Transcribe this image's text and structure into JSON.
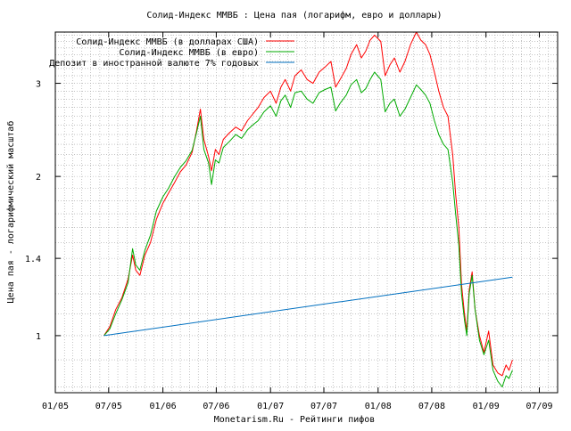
{
  "chart_data": {
    "type": "line",
    "title": "Солид-Индекс ММВБ : Цена пая (логарифм, евро и доллары)",
    "xlabel": "Monetarism.Ru - Рейтинги пифов",
    "ylabel": "Цена пая - логарифмический масштаб",
    "y_scale": "log",
    "ylim": [
      0.78,
      3.75
    ],
    "xlim": [
      "2005-01-01",
      "2009-09-01"
    ],
    "x_ticks": [
      {
        "date": "2005-01-01",
        "label": "01/05"
      },
      {
        "date": "2005-07-01",
        "label": "07/05"
      },
      {
        "date": "2006-01-01",
        "label": "01/06"
      },
      {
        "date": "2006-07-01",
        "label": "07/06"
      },
      {
        "date": "2007-01-01",
        "label": "01/07"
      },
      {
        "date": "2007-07-01",
        "label": "07/07"
      },
      {
        "date": "2008-01-01",
        "label": "01/08"
      },
      {
        "date": "2008-07-01",
        "label": "07/08"
      },
      {
        "date": "2009-01-01",
        "label": "01/09"
      },
      {
        "date": "2009-07-01",
        "label": "07/09"
      }
    ],
    "y_ticks": [
      {
        "value": 1,
        "label": "1"
      },
      {
        "value": 1.4,
        "label": "1.4"
      },
      {
        "value": 2,
        "label": "2"
      },
      {
        "value": 3,
        "label": "3"
      }
    ],
    "grid": true,
    "legend_position": "top-left",
    "series": [
      {
        "name": "Солид-Индекс ММВБ (в долларах США)",
        "color": "#ff0000",
        "points": [
          [
            "2005-06-15",
            1.0
          ],
          [
            "2005-07-05",
            1.04
          ],
          [
            "2005-07-25",
            1.12
          ],
          [
            "2005-08-15",
            1.18
          ],
          [
            "2005-09-05",
            1.28
          ],
          [
            "2005-09-20",
            1.42
          ],
          [
            "2005-10-01",
            1.33
          ],
          [
            "2005-10-15",
            1.3
          ],
          [
            "2005-11-01",
            1.42
          ],
          [
            "2005-11-20",
            1.5
          ],
          [
            "2005-12-10",
            1.66
          ],
          [
            "2006-01-01",
            1.78
          ],
          [
            "2006-01-20",
            1.86
          ],
          [
            "2006-02-10",
            1.95
          ],
          [
            "2006-03-01",
            2.04
          ],
          [
            "2006-03-20",
            2.1
          ],
          [
            "2006-04-10",
            2.22
          ],
          [
            "2006-04-25",
            2.44
          ],
          [
            "2006-05-08",
            2.68
          ],
          [
            "2006-05-20",
            2.35
          ],
          [
            "2006-06-05",
            2.18
          ],
          [
            "2006-06-15",
            2.05
          ],
          [
            "2006-06-28",
            2.25
          ],
          [
            "2006-07-10",
            2.2
          ],
          [
            "2006-07-25",
            2.35
          ],
          [
            "2006-08-15",
            2.42
          ],
          [
            "2006-09-05",
            2.48
          ],
          [
            "2006-09-25",
            2.44
          ],
          [
            "2006-10-15",
            2.55
          ],
          [
            "2006-11-01",
            2.62
          ],
          [
            "2006-11-20",
            2.7
          ],
          [
            "2006-12-10",
            2.82
          ],
          [
            "2007-01-01",
            2.9
          ],
          [
            "2007-01-20",
            2.75
          ],
          [
            "2007-02-05",
            2.95
          ],
          [
            "2007-02-20",
            3.05
          ],
          [
            "2007-03-10",
            2.9
          ],
          [
            "2007-03-25",
            3.1
          ],
          [
            "2007-04-15",
            3.18
          ],
          [
            "2007-05-05",
            3.05
          ],
          [
            "2007-05-25",
            3.0
          ],
          [
            "2007-06-15",
            3.15
          ],
          [
            "2007-07-05",
            3.22
          ],
          [
            "2007-07-25",
            3.3
          ],
          [
            "2007-08-10",
            2.95
          ],
          [
            "2007-08-25",
            3.05
          ],
          [
            "2007-09-15",
            3.2
          ],
          [
            "2007-10-01",
            3.4
          ],
          [
            "2007-10-20",
            3.55
          ],
          [
            "2007-11-05",
            3.35
          ],
          [
            "2007-11-20",
            3.45
          ],
          [
            "2007-12-05",
            3.62
          ],
          [
            "2007-12-20",
            3.7
          ],
          [
            "2008-01-10",
            3.6
          ],
          [
            "2008-01-25",
            3.1
          ],
          [
            "2008-02-10",
            3.25
          ],
          [
            "2008-02-25",
            3.35
          ],
          [
            "2008-03-15",
            3.15
          ],
          [
            "2008-04-01",
            3.3
          ],
          [
            "2008-04-20",
            3.55
          ],
          [
            "2008-05-10",
            3.75
          ],
          [
            "2008-05-25",
            3.62
          ],
          [
            "2008-06-10",
            3.55
          ],
          [
            "2008-06-25",
            3.4
          ],
          [
            "2008-07-10",
            3.15
          ],
          [
            "2008-07-25",
            2.9
          ],
          [
            "2008-08-10",
            2.7
          ],
          [
            "2008-08-25",
            2.6
          ],
          [
            "2008-09-10",
            2.2
          ],
          [
            "2008-09-20",
            1.85
          ],
          [
            "2008-10-01",
            1.6
          ],
          [
            "2008-10-10",
            1.25
          ],
          [
            "2008-10-20",
            1.1
          ],
          [
            "2008-10-28",
            1.02
          ],
          [
            "2008-11-05",
            1.22
          ],
          [
            "2008-11-15",
            1.32
          ],
          [
            "2008-11-25",
            1.12
          ],
          [
            "2008-12-10",
            1.0
          ],
          [
            "2008-12-25",
            0.93
          ],
          [
            "2009-01-10",
            1.02
          ],
          [
            "2009-01-25",
            0.88
          ],
          [
            "2009-02-10",
            0.85
          ],
          [
            "2009-02-25",
            0.84
          ],
          [
            "2009-03-10",
            0.88
          ],
          [
            "2009-03-20",
            0.86
          ],
          [
            "2009-04-01",
            0.9
          ]
        ]
      },
      {
        "name": "Солид-Индекс ММВБ (в евро)",
        "color": "#00aa00",
        "points": [
          [
            "2005-06-15",
            1.0
          ],
          [
            "2005-07-05",
            1.03
          ],
          [
            "2005-07-25",
            1.1
          ],
          [
            "2005-08-15",
            1.17
          ],
          [
            "2005-09-05",
            1.26
          ],
          [
            "2005-09-20",
            1.46
          ],
          [
            "2005-10-01",
            1.36
          ],
          [
            "2005-10-15",
            1.33
          ],
          [
            "2005-11-01",
            1.45
          ],
          [
            "2005-11-20",
            1.55
          ],
          [
            "2005-12-10",
            1.72
          ],
          [
            "2006-01-01",
            1.83
          ],
          [
            "2006-01-20",
            1.9
          ],
          [
            "2006-02-10",
            2.0
          ],
          [
            "2006-03-01",
            2.08
          ],
          [
            "2006-03-20",
            2.14
          ],
          [
            "2006-04-10",
            2.24
          ],
          [
            "2006-04-25",
            2.42
          ],
          [
            "2006-05-08",
            2.6
          ],
          [
            "2006-05-20",
            2.25
          ],
          [
            "2006-06-05",
            2.12
          ],
          [
            "2006-06-15",
            1.93
          ],
          [
            "2006-06-28",
            2.15
          ],
          [
            "2006-07-10",
            2.12
          ],
          [
            "2006-07-25",
            2.27
          ],
          [
            "2006-08-15",
            2.33
          ],
          [
            "2006-09-05",
            2.4
          ],
          [
            "2006-09-25",
            2.36
          ],
          [
            "2006-10-15",
            2.45
          ],
          [
            "2006-11-01",
            2.5
          ],
          [
            "2006-11-20",
            2.55
          ],
          [
            "2006-12-10",
            2.65
          ],
          [
            "2007-01-01",
            2.72
          ],
          [
            "2007-01-20",
            2.6
          ],
          [
            "2007-02-05",
            2.78
          ],
          [
            "2007-02-20",
            2.85
          ],
          [
            "2007-03-10",
            2.7
          ],
          [
            "2007-03-25",
            2.88
          ],
          [
            "2007-04-15",
            2.9
          ],
          [
            "2007-05-05",
            2.8
          ],
          [
            "2007-05-25",
            2.75
          ],
          [
            "2007-06-15",
            2.88
          ],
          [
            "2007-07-05",
            2.92
          ],
          [
            "2007-07-25",
            2.95
          ],
          [
            "2007-08-10",
            2.66
          ],
          [
            "2007-08-25",
            2.75
          ],
          [
            "2007-09-15",
            2.85
          ],
          [
            "2007-10-01",
            2.98
          ],
          [
            "2007-10-20",
            3.05
          ],
          [
            "2007-11-05",
            2.88
          ],
          [
            "2007-11-20",
            2.93
          ],
          [
            "2007-12-05",
            3.05
          ],
          [
            "2007-12-20",
            3.15
          ],
          [
            "2008-01-10",
            3.05
          ],
          [
            "2008-01-25",
            2.65
          ],
          [
            "2008-02-10",
            2.75
          ],
          [
            "2008-02-25",
            2.8
          ],
          [
            "2008-03-15",
            2.6
          ],
          [
            "2008-04-01",
            2.68
          ],
          [
            "2008-04-20",
            2.82
          ],
          [
            "2008-05-10",
            2.98
          ],
          [
            "2008-05-25",
            2.92
          ],
          [
            "2008-06-10",
            2.85
          ],
          [
            "2008-06-25",
            2.75
          ],
          [
            "2008-07-10",
            2.55
          ],
          [
            "2008-07-25",
            2.4
          ],
          [
            "2008-08-10",
            2.3
          ],
          [
            "2008-08-25",
            2.25
          ],
          [
            "2008-09-10",
            1.95
          ],
          [
            "2008-09-20",
            1.7
          ],
          [
            "2008-10-01",
            1.48
          ],
          [
            "2008-10-10",
            1.2
          ],
          [
            "2008-10-20",
            1.07
          ],
          [
            "2008-10-28",
            1.0
          ],
          [
            "2008-11-05",
            1.2
          ],
          [
            "2008-11-15",
            1.3
          ],
          [
            "2008-11-25",
            1.12
          ],
          [
            "2008-12-10",
            0.98
          ],
          [
            "2008-12-25",
            0.92
          ],
          [
            "2009-01-10",
            0.98
          ],
          [
            "2009-01-25",
            0.86
          ],
          [
            "2009-02-10",
            0.82
          ],
          [
            "2009-02-25",
            0.8
          ],
          [
            "2009-03-10",
            0.84
          ],
          [
            "2009-03-20",
            0.83
          ],
          [
            "2009-04-01",
            0.86
          ]
        ]
      },
      {
        "name": "Депозит в иностранной валюте 7% годовых",
        "color": "#0070c0",
        "points": [
          [
            "2005-06-15",
            1.0
          ],
          [
            "2009-04-01",
            1.29
          ]
        ]
      }
    ]
  }
}
